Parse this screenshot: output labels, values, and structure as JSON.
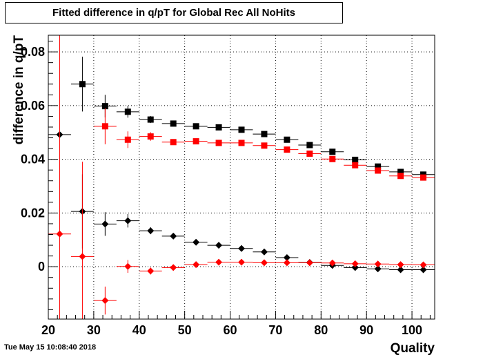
{
  "header": {
    "title": "Fitted difference in q/pT for Global Rec All NoHits"
  },
  "footer": {
    "timestamp": "Tue May 15 10:08:40 2018"
  },
  "chart_data": {
    "type": "scatter",
    "title": "Fitted difference in q/pT for Global Rec All NoHits",
    "xlabel": "Quality",
    "ylabel": "difference in q/pT",
    "xlim": [
      20,
      105
    ],
    "ylim": [
      -0.0195,
      0.0862
    ],
    "x_ticks": [
      20,
      30,
      40,
      50,
      60,
      70,
      80,
      90,
      100
    ],
    "x_tick_labels": [
      "20",
      "30",
      "40",
      "50",
      "60",
      "70",
      "80",
      "90",
      "100"
    ],
    "y_ticks": [
      0,
      0.02,
      0.04,
      0.06,
      0.08
    ],
    "y_tick_labels": [
      "0",
      "0.02",
      "0.04",
      "0.06",
      "0.08"
    ],
    "grid": true,
    "x_bin_half_width": 2.5,
    "series": [
      {
        "marker": "square",
        "color": "#000000",
        "x": [
          27.5,
          32.5,
          37.5,
          42.5,
          47.5,
          52.5,
          57.5,
          62.5,
          67.5,
          72.5,
          77.5,
          82.5,
          87.5,
          92.5,
          97.5,
          102.5
        ],
        "y": [
          0.068,
          0.0598,
          0.0577,
          0.0548,
          0.0533,
          0.0523,
          0.0519,
          0.051,
          0.0494,
          0.0473,
          0.0453,
          0.0428,
          0.0398,
          0.0373,
          0.0353,
          0.0343
        ],
        "yerr": [
          0.0102,
          0.0042,
          0.0022,
          0.0013,
          0.0008,
          0.0006,
          0.0006,
          0.0006,
          0.0006,
          0.0006,
          0.0006,
          0.0006,
          0.0006,
          0.0005,
          0.0005,
          0.0005
        ]
      },
      {
        "marker": "square",
        "color": "#ff0000",
        "x": [
          32.5,
          37.5,
          42.5,
          47.5,
          52.5,
          57.5,
          62.5,
          67.5,
          72.5,
          77.5,
          82.5,
          87.5,
          92.5,
          97.5,
          102.5
        ],
        "y": [
          0.0523,
          0.0473,
          0.0485,
          0.0464,
          0.0467,
          0.0461,
          0.0461,
          0.0451,
          0.0436,
          0.0421,
          0.0401,
          0.0378,
          0.0358,
          0.0338,
          0.0332
        ],
        "yerr": [
          0.0067,
          0.0031,
          0.0016,
          0.001,
          0.0008,
          0.0007,
          0.0007,
          0.0007,
          0.0006,
          0.0006,
          0.0006,
          0.0006,
          0.0005,
          0.0005,
          0.0005
        ]
      },
      {
        "marker": "diamond",
        "color": "#000000",
        "x": [
          22.5,
          27.5,
          32.5,
          37.5,
          42.5,
          47.5,
          52.5,
          57.5,
          62.5,
          67.5,
          72.5,
          77.5,
          82.5,
          87.5,
          92.5,
          97.5,
          102.5
        ],
        "y": [
          0.0492,
          0.0206,
          0.0159,
          0.0171,
          0.0134,
          0.0114,
          0.0091,
          0.008,
          0.0068,
          0.0055,
          0.0034,
          0.0016,
          0.0005,
          -0.0003,
          -0.0008,
          -0.0011,
          -0.0011
        ],
        "yerr": [
          0.0005,
          0.0138,
          0.0044,
          0.0025,
          0.0013,
          0.0008,
          0.0006,
          0.0006,
          0.0006,
          0.0006,
          0.0006,
          0.0006,
          0.0005,
          0.0005,
          0.0005,
          0.0004,
          0.0004
        ]
      },
      {
        "marker": "diamond",
        "color": "#ff0000",
        "x": [
          22.5,
          27.5,
          32.5,
          37.5,
          42.5,
          47.5,
          52.5,
          57.5,
          62.5,
          67.5,
          72.5,
          77.5,
          82.5,
          87.5,
          92.5,
          97.5,
          102.5
        ],
        "y": [
          0.0122,
          0.0038,
          -0.0126,
          0.0001,
          -0.0016,
          -0.0003,
          0.0008,
          0.0017,
          0.0017,
          0.0015,
          0.0015,
          0.0015,
          0.0014,
          0.0011,
          0.001,
          0.0008,
          0.0007
        ],
        "yerr": [
          0.1,
          0.0353,
          0.0052,
          0.0024,
          0.0013,
          0.0008,
          0.0007,
          0.0006,
          0.0006,
          0.0006,
          0.0006,
          0.0005,
          0.0005,
          0.0005,
          0.0005,
          0.0004,
          0.0004
        ]
      }
    ]
  }
}
